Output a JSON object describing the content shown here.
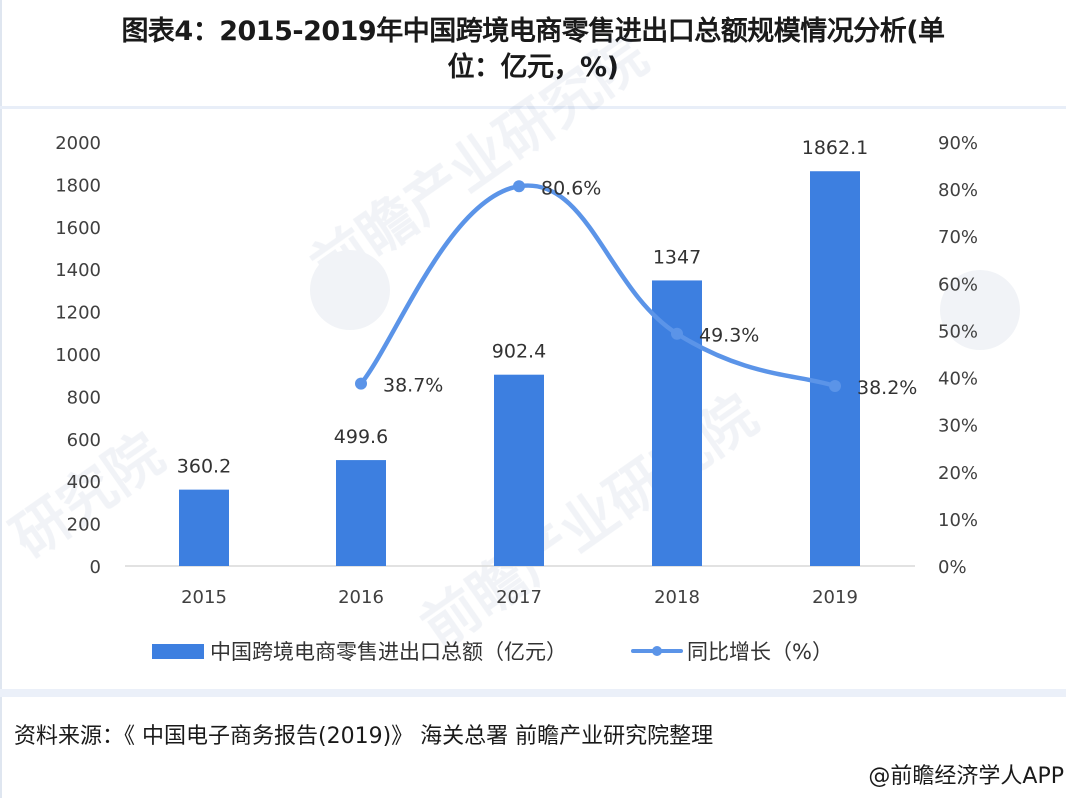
{
  "title": {
    "line1": "图表4：2015-2019年中国跨境电商零售进出口总额规模情况分析(单",
    "line2": "位：亿元，%)"
  },
  "colors": {
    "bar": "#3d7fe0",
    "line": "#5b94e8",
    "axis": "#d9d9d9",
    "text": "#404040"
  },
  "chart_data": {
    "type": "bar+line",
    "title": "图表4：2015-2019年中国跨境电商零售进出口总额规模情况分析(单位：亿元，%)",
    "categories": [
      "2015",
      "2016",
      "2017",
      "2018",
      "2019"
    ],
    "series": [
      {
        "name": "中国跨境电商零售进出口总额（亿元）",
        "type": "bar",
        "axis": "left",
        "values": [
          360.2,
          499.6,
          902.4,
          1347,
          1862.1
        ],
        "labels": [
          "360.2",
          "499.6",
          "902.4",
          "1347",
          "1862.1"
        ]
      },
      {
        "name": "同比增长（%）",
        "type": "line",
        "axis": "right",
        "values": [
          null,
          38.7,
          80.6,
          49.3,
          38.2
        ],
        "labels": [
          "",
          "38.7%",
          "80.6%",
          "49.3%",
          "38.2%"
        ]
      }
    ],
    "left_axis": {
      "ylim": [
        0,
        2000
      ],
      "ticks": [
        "0",
        "200",
        "400",
        "600",
        "800",
        "1000",
        "1200",
        "1400",
        "1600",
        "1800",
        "2000"
      ]
    },
    "right_axis": {
      "ylim": [
        0,
        90
      ],
      "ticks": [
        "0%",
        "10%",
        "20%",
        "30%",
        "40%",
        "50%",
        "60%",
        "70%",
        "80%",
        "90%"
      ]
    },
    "grid": false,
    "legend_position": "bottom"
  },
  "legend": {
    "bar_label": "中国跨境电商零售进出口总额（亿元）",
    "line_label": "同比增长（%）"
  },
  "footer": {
    "source": "资料来源：《 中国电子商务报告(2019)》 海关总署 前瞻产业研究院整理",
    "credit": "@前瞻经济学人APP"
  }
}
